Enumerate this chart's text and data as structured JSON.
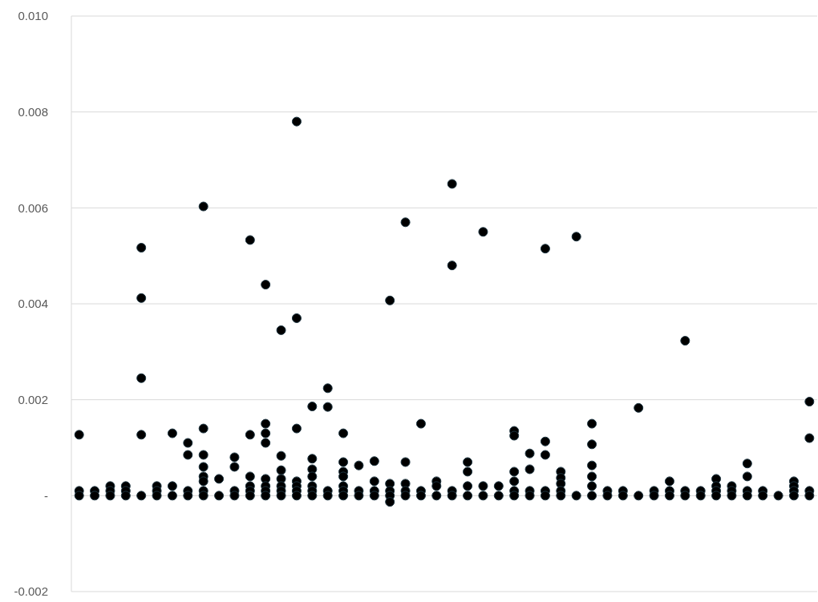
{
  "chart_data": {
    "type": "scatter",
    "categories": [
      null,
      null,
      null,
      null,
      null,
      null,
      null,
      null,
      null,
      null,
      null,
      null,
      null,
      null,
      null,
      null,
      null,
      null,
      null,
      null,
      null,
      null,
      null,
      null,
      null,
      null,
      null,
      null,
      null,
      null,
      null,
      null,
      null,
      null,
      null,
      null,
      null,
      null,
      null,
      null,
      null,
      null,
      null,
      null,
      null,
      null,
      null,
      null
    ],
    "ylim": [
      -0.002,
      0.01
    ],
    "yticks": [
      {
        "value": -0.002,
        "label": "-0.002"
      },
      {
        "value": 0,
        "label": "-"
      },
      {
        "value": 0.002,
        "label": "0.002"
      },
      {
        "value": 0.004,
        "label": "0.004"
      },
      {
        "value": 0.006,
        "label": "0.006"
      },
      {
        "value": 0.008,
        "label": "0.008"
      },
      {
        "value": 0.01,
        "label": "0.010"
      }
    ],
    "grid": "y",
    "marker": "circle",
    "series": [
      {
        "color": "#000000",
        "values": [
          0.00127,
          0.0001,
          0.0002,
          0.0002,
          0.00517,
          0.0002,
          0.0013,
          0.0011,
          0.00603,
          0.00035,
          0.0008,
          0.00533,
          0.0044,
          0.00345,
          0.0078,
          0.00186,
          0.00224,
          0.0013,
          0.00063,
          0.00072,
          0.00407,
          0.0057,
          0.0015,
          0.0003,
          0.0065,
          0.0007,
          0.0055,
          0.0002,
          0.00135,
          0.00088,
          0.00515,
          0.0005,
          0.0054,
          0.0015,
          0.0001,
          0.0001,
          0.00183,
          0.0001,
          0.0003,
          0.00323,
          0.0001,
          0.00035,
          0.0002,
          0.00067,
          0.0001,
          0,
          0.0003,
          0.00196
        ]
      },
      {
        "color": "#000000",
        "values": [
          0.0001,
          0,
          0.0001,
          0.0001,
          0.00412,
          0.0001,
          0.0002,
          0.00085,
          0.0014,
          0,
          0.0006,
          0.00127,
          0.0015,
          0.00083,
          0.0037,
          0.00077,
          0.00185,
          0.0007,
          0.0001,
          0.0003,
          0.00025,
          0.0007,
          0.0001,
          0.0002,
          0.0048,
          0.0005,
          0.0002,
          0,
          0.00125,
          0.00055,
          0.00113,
          0.00037,
          0,
          0.00107,
          0,
          0,
          0,
          0,
          0.0001,
          0.0001,
          0,
          0.0002,
          0.0001,
          0.0004,
          0,
          null,
          0.0002,
          0.0012
        ]
      },
      {
        "color": "#000000",
        "values": [
          0,
          null,
          0,
          0,
          0.00245,
          0,
          0,
          0.0001,
          0.00085,
          null,
          0.0001,
          0.0004,
          0.0013,
          0.00053,
          0.0014,
          0.00055,
          0.0001,
          0.0005,
          0,
          0.0001,
          0.0001,
          0.00025,
          0,
          0,
          0.0001,
          0.0002,
          0,
          null,
          0.0005,
          0.0001,
          0.00085,
          0.00025,
          null,
          0.00063,
          null,
          null,
          null,
          null,
          0,
          0,
          null,
          0.0001,
          0,
          0.0001,
          null,
          null,
          0.0001,
          0.0001
        ]
      },
      {
        "color": "#000000",
        "values": [
          null,
          null,
          null,
          null,
          0.00127,
          null,
          null,
          0,
          0.0006,
          null,
          0,
          0.0002,
          0.0011,
          0.00035,
          0.0003,
          0.0004,
          0,
          0.0004,
          null,
          0,
          0,
          0.0001,
          null,
          null,
          0,
          0,
          null,
          null,
          0.0003,
          0,
          0.0001,
          0.0001,
          null,
          0.0004,
          null,
          null,
          null,
          null,
          null,
          null,
          null,
          0,
          null,
          0,
          null,
          null,
          0,
          0
        ]
      },
      {
        "color": "#000000",
        "values": [
          null,
          null,
          null,
          null,
          0,
          null,
          null,
          null,
          0.0004,
          null,
          null,
          0.0001,
          0.00035,
          0.0002,
          0.0002,
          0.0002,
          null,
          0.0002,
          null,
          null,
          -0.00013,
          0,
          null,
          null,
          null,
          null,
          null,
          null,
          0.0001,
          null,
          0,
          0,
          null,
          0.0002,
          null,
          null,
          null,
          null,
          null,
          null,
          null,
          null,
          null,
          null,
          null,
          null,
          null,
          null
        ]
      },
      {
        "color": "#000000",
        "values": [
          null,
          null,
          null,
          null,
          null,
          null,
          null,
          null,
          0.0003,
          null,
          null,
          0,
          0.0002,
          0.0001,
          0.0001,
          0.0001,
          null,
          0.0001,
          null,
          null,
          null,
          null,
          null,
          null,
          null,
          null,
          null,
          null,
          0,
          null,
          null,
          null,
          null,
          0,
          null,
          null,
          null,
          null,
          null,
          null,
          null,
          null,
          null,
          null,
          null,
          null,
          null,
          null
        ]
      },
      {
        "color": "#000000",
        "values": [
          null,
          null,
          null,
          null,
          null,
          null,
          null,
          null,
          0.0001,
          null,
          null,
          null,
          0.0001,
          0,
          0,
          0,
          null,
          0,
          null,
          null,
          null,
          null,
          null,
          null,
          null,
          null,
          null,
          null,
          null,
          null,
          null,
          null,
          null,
          null,
          null,
          null,
          null,
          null,
          null,
          null,
          null,
          null,
          null,
          null,
          null,
          null,
          null,
          null
        ]
      },
      {
        "color": "#000000",
        "values": [
          null,
          null,
          null,
          null,
          null,
          null,
          null,
          null,
          0,
          null,
          null,
          null,
          0,
          null,
          null,
          null,
          null,
          null,
          null,
          null,
          null,
          null,
          null,
          null,
          null,
          null,
          null,
          null,
          null,
          null,
          null,
          null,
          null,
          null,
          null,
          null,
          null,
          null,
          null,
          null,
          null,
          null,
          null,
          null,
          null,
          null,
          null,
          null
        ]
      }
    ]
  }
}
